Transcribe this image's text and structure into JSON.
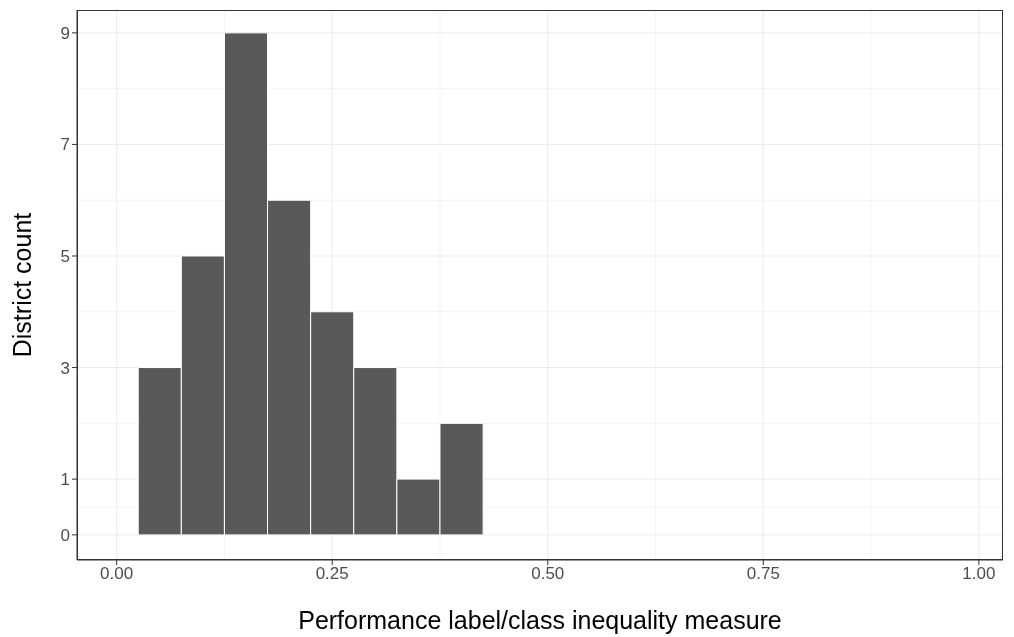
{
  "chart_data": {
    "type": "histogram",
    "xlabel": "Performance label/class inequality measure",
    "ylabel": "District count",
    "bins": [
      0.025,
      0.075,
      0.125,
      0.175,
      0.225,
      0.275,
      0.325,
      0.375,
      0.425
    ],
    "values": [
      3,
      5,
      9,
      6,
      4,
      3,
      1,
      2
    ],
    "color": "#595959",
    "xlim": [
      -0.046,
      1.028
    ],
    "ylim": [
      -0.45,
      9.41
    ],
    "xticks": [
      {
        "value": 0,
        "label": "0.00"
      },
      {
        "value": 0.25,
        "label": "0.25"
      },
      {
        "value": 0.5,
        "label": "0.50"
      },
      {
        "value": 0.75,
        "label": "0.75"
      },
      {
        "value": 1,
        "label": "1.00"
      }
    ],
    "yticks": [
      0,
      1,
      3,
      5,
      7,
      9
    ],
    "grid": true
  }
}
